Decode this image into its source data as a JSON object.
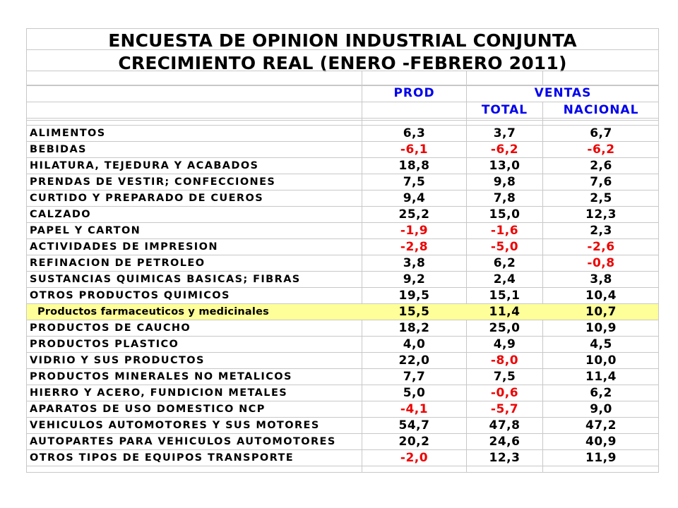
{
  "title": {
    "line1": "ENCUESTA DE OPINION INDUSTRIAL CONJUNTA",
    "line2": "CRECIMIENTO REAL (ENERO -FEBRERO 2011)"
  },
  "headers": {
    "prod": "PROD",
    "ventas": "VENTAS",
    "total": "TOTAL",
    "nacional": "NACIONAL"
  },
  "colors": {
    "negative": "#ee0000",
    "header": "#0000ee",
    "highlight": "#ffff99"
  },
  "rows": [
    {
      "label": "ALIMENTOS",
      "prod": "6,3",
      "total": "3,7",
      "nacional": "6,7"
    },
    {
      "label": "BEBIDAS",
      "prod": "-6,1",
      "total": "-6,2",
      "nacional": "-6,2"
    },
    {
      "label": "HILATURA, TEJEDURA Y ACABADOS",
      "prod": "18,8",
      "total": "13,0",
      "nacional": "2,6"
    },
    {
      "label": "PRENDAS DE VESTIR; CONFECCIONES",
      "prod": "7,5",
      "total": "9,8",
      "nacional": "7,6"
    },
    {
      "label": "CURTIDO Y PREPARADO DE CUEROS",
      "prod": "9,4",
      "total": "7,8",
      "nacional": "2,5"
    },
    {
      "label": "CALZADO",
      "prod": "25,2",
      "total": "15,0",
      "nacional": "12,3"
    },
    {
      "label": "PAPEL Y CARTON",
      "prod": "-1,9",
      "total": "-1,6",
      "nacional": "2,3"
    },
    {
      "label": "ACTIVIDADES DE IMPRESION",
      "prod": "-2,8",
      "total": "-5,0",
      "nacional": "-2,6"
    },
    {
      "label": "REFINACION DE PETROLEO",
      "prod": "3,8",
      "total": "6,2",
      "nacional": "-0,8"
    },
    {
      "label": "SUSTANCIAS QUIMICAS BASICAS; FIBRAS",
      "prod": "9,2",
      "total": "2,4",
      "nacional": "3,8"
    },
    {
      "label": "OTROS PRODUCTOS QUIMICOS",
      "prod": "19,5",
      "total": "15,1",
      "nacional": "10,4"
    },
    {
      "label": "Productos farmaceuticos y medicinales",
      "prod": "15,5",
      "total": "11,4",
      "nacional": "10,7",
      "highlight": true
    },
    {
      "label": "PRODUCTOS DE CAUCHO",
      "prod": "18,2",
      "total": "25,0",
      "nacional": "10,9"
    },
    {
      "label": "PRODUCTOS PLASTICO",
      "prod": "4,0",
      "total": "4,9",
      "nacional": "4,5"
    },
    {
      "label": "VIDRIO Y SUS PRODUCTOS",
      "prod": "22,0",
      "total": "-8,0",
      "nacional": "10,0"
    },
    {
      "label": "PRODUCTOS MINERALES NO METALICOS",
      "prod": "7,7",
      "total": "7,5",
      "nacional": "11,4"
    },
    {
      "label": "HIERRO Y ACERO, FUNDICION METALES",
      "prod": "5,0",
      "total": "-0,6",
      "nacional": "6,2"
    },
    {
      "label": "APARATOS DE USO DOMESTICO NCP",
      "prod": "-4,1",
      "total": "-5,7",
      "nacional": "9,0"
    },
    {
      "label": "VEHICULOS AUTOMOTORES Y SUS MOTORES",
      "prod": "54,7",
      "total": "47,8",
      "nacional": "47,2"
    },
    {
      "label": "AUTOPARTES PARA VEHICULOS AUTOMOTORES",
      "prod": "20,2",
      "total": "24,6",
      "nacional": "40,9"
    },
    {
      "label": "OTROS TIPOS DE EQUIPOS TRANSPORTE",
      "prod": "-2,0",
      "total": "12,3",
      "nacional": "11,9"
    }
  ]
}
